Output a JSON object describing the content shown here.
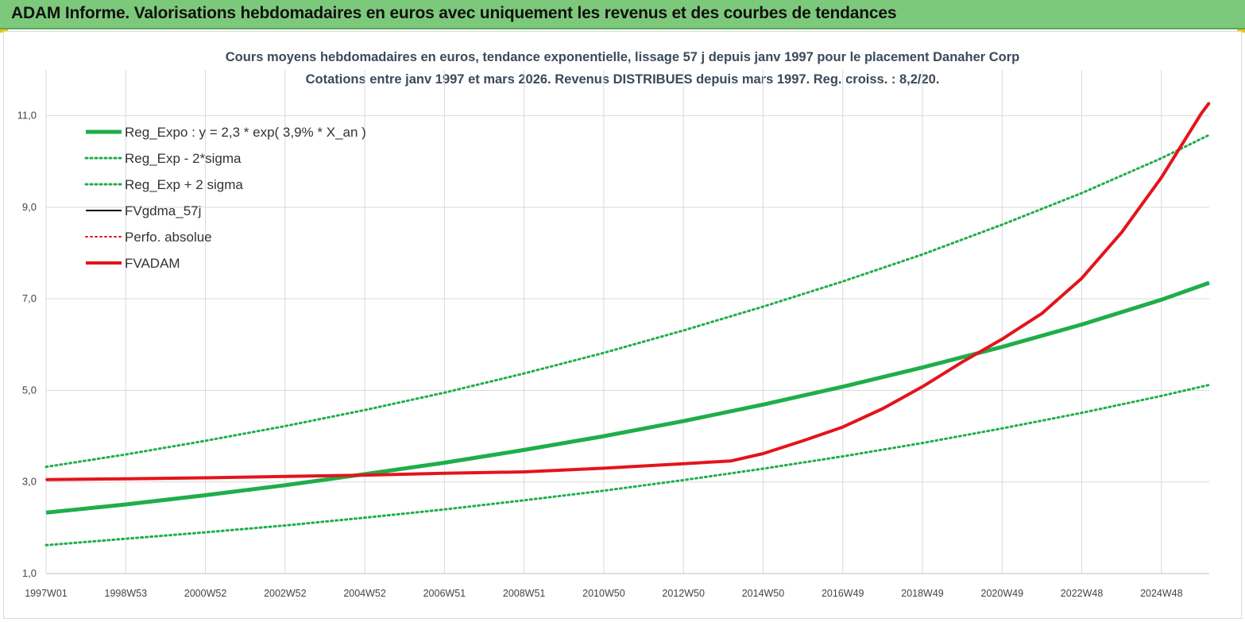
{
  "header": {
    "banner_title": "ADAM Informe. Valorisations hebdomadaires en euros avec uniquement les revenus et des courbes de tendances"
  },
  "colors": {
    "banner_bg": "#7dc97b",
    "reg_expo": "#1fae4a",
    "fvadam": "#e3141b",
    "fvgdma": "#000000",
    "grid": "#d9d9d9"
  },
  "chart_data": {
    "type": "line",
    "title": "Cours moyens hebdomadaires en euros, tendance exponentielle, lissage 57 j depuis janv 1997 pour le placement Danaher Corp",
    "subtitle": "Cotations entre janv 1997 et mars 2026. Revenus DISTRIBUES depuis mars 1997. Reg. croiss. : 8,2/20.",
    "xlabel": "",
    "ylabel": "",
    "x_range": [
      1997.0,
      2026.2
    ],
    "ylim": [
      1.0,
      12.0
    ],
    "y_ticks": [
      1.0,
      3.0,
      5.0,
      7.0,
      9.0,
      11.0
    ],
    "y_tick_labels": [
      "1,0",
      "3,0",
      "5,0",
      "7,0",
      "9,0",
      "11,0"
    ],
    "x_ticks": [
      {
        "label": "1997W01",
        "x": 1997.0
      },
      {
        "label": "1998W53",
        "x": 1999.0
      },
      {
        "label": "2000W52",
        "x": 2001.0
      },
      {
        "label": "2002W52",
        "x": 2003.0
      },
      {
        "label": "2004W52",
        "x": 2005.0
      },
      {
        "label": "2006W51",
        "x": 2007.0
      },
      {
        "label": "2008W51",
        "x": 2009.0
      },
      {
        "label": "2010W50",
        "x": 2011.0
      },
      {
        "label": "2012W50",
        "x": 2013.0
      },
      {
        "label": "2014W50",
        "x": 2015.0
      },
      {
        "label": "2016W49",
        "x": 2017.0
      },
      {
        "label": "2018W49",
        "x": 2019.0
      },
      {
        "label": "2020W49",
        "x": 2021.0
      },
      {
        "label": "2022W48",
        "x": 2023.0
      },
      {
        "label": "2024W48",
        "x": 2025.0
      }
    ],
    "grid": true,
    "legend_position": "top-left",
    "series": [
      {
        "name": "Reg_Expo : y = 2,3 * exp( 3,9% *  X_an )",
        "style": "solid-thick",
        "color": "#1fae4a",
        "points": [
          [
            1997.0,
            2.33
          ],
          [
            1999.0,
            2.51
          ],
          [
            2001.0,
            2.71
          ],
          [
            2003.0,
            2.93
          ],
          [
            2005.0,
            3.17
          ],
          [
            2007.0,
            3.42
          ],
          [
            2009.0,
            3.7
          ],
          [
            2011.0,
            4.0
          ],
          [
            2013.0,
            4.33
          ],
          [
            2015.0,
            4.69
          ],
          [
            2017.0,
            5.08
          ],
          [
            2019.0,
            5.5
          ],
          [
            2021.0,
            5.95
          ],
          [
            2023.0,
            6.44
          ],
          [
            2025.0,
            6.98
          ],
          [
            2026.2,
            7.35
          ]
        ]
      },
      {
        "name": "Reg_Exp - 2*sigma",
        "style": "dotted",
        "color": "#1fae4a",
        "points": [
          [
            1997.0,
            1.62
          ],
          [
            1999.0,
            1.76
          ],
          [
            2001.0,
            1.9
          ],
          [
            2003.0,
            2.05
          ],
          [
            2005.0,
            2.22
          ],
          [
            2007.0,
            2.4
          ],
          [
            2009.0,
            2.6
          ],
          [
            2011.0,
            2.81
          ],
          [
            2013.0,
            3.04
          ],
          [
            2015.0,
            3.29
          ],
          [
            2017.0,
            3.56
          ],
          [
            2019.0,
            3.85
          ],
          [
            2021.0,
            4.17
          ],
          [
            2023.0,
            4.51
          ],
          [
            2025.0,
            4.88
          ],
          [
            2026.2,
            5.12
          ]
        ]
      },
      {
        "name": "Reg_Exp + 2 sigma",
        "style": "dotted",
        "color": "#1fae4a",
        "points": [
          [
            1997.0,
            3.33
          ],
          [
            1999.0,
            3.6
          ],
          [
            2001.0,
            3.9
          ],
          [
            2003.0,
            4.22
          ],
          [
            2005.0,
            4.57
          ],
          [
            2007.0,
            4.95
          ],
          [
            2009.0,
            5.37
          ],
          [
            2011.0,
            5.82
          ],
          [
            2013.0,
            6.31
          ],
          [
            2015.0,
            6.83
          ],
          [
            2017.0,
            7.38
          ],
          [
            2019.0,
            7.97
          ],
          [
            2021.0,
            8.62
          ],
          [
            2023.0,
            9.31
          ],
          [
            2025.0,
            10.07
          ],
          [
            2026.2,
            10.58
          ]
        ]
      },
      {
        "name": "FVgdma_57j",
        "style": "solid",
        "color": "#000000",
        "points": [
          [
            1997.0,
            3.05
          ],
          [
            1999.0,
            3.07
          ],
          [
            2001.0,
            3.09
          ],
          [
            2003.0,
            3.12
          ],
          [
            2005.0,
            3.15
          ],
          [
            2007.0,
            3.19
          ],
          [
            2009.0,
            3.22
          ],
          [
            2011.0,
            3.3
          ],
          [
            2013.0,
            3.4
          ],
          [
            2014.2,
            3.46
          ],
          [
            2015.0,
            3.62
          ],
          [
            2016.0,
            3.9
          ],
          [
            2017.0,
            4.2
          ],
          [
            2018.0,
            4.6
          ],
          [
            2019.0,
            5.08
          ],
          [
            2020.0,
            5.62
          ],
          [
            2021.0,
            6.12
          ],
          [
            2022.0,
            6.68
          ],
          [
            2023.0,
            7.45
          ],
          [
            2024.0,
            8.45
          ],
          [
            2025.0,
            9.65
          ],
          [
            2026.0,
            11.05
          ],
          [
            2026.2,
            11.28
          ]
        ]
      },
      {
        "name": "Perfo. absolue",
        "style": "dotted",
        "color": "#e3141b",
        "points": [
          [
            1997.0,
            3.05
          ],
          [
            1999.0,
            3.07
          ],
          [
            2001.0,
            3.09
          ],
          [
            2003.0,
            3.12
          ],
          [
            2005.0,
            3.15
          ],
          [
            2007.0,
            3.19
          ],
          [
            2009.0,
            3.22
          ],
          [
            2011.0,
            3.3
          ],
          [
            2013.0,
            3.4
          ],
          [
            2014.2,
            3.46
          ],
          [
            2015.0,
            3.62
          ],
          [
            2016.0,
            3.9
          ],
          [
            2017.0,
            4.2
          ],
          [
            2018.0,
            4.6
          ],
          [
            2019.0,
            5.08
          ],
          [
            2020.0,
            5.62
          ],
          [
            2021.0,
            6.12
          ],
          [
            2022.0,
            6.68
          ],
          [
            2023.0,
            7.45
          ],
          [
            2024.0,
            8.45
          ],
          [
            2025.0,
            9.65
          ],
          [
            2026.0,
            11.05
          ],
          [
            2026.2,
            11.28
          ]
        ]
      },
      {
        "name": "FVADAM",
        "style": "solid-thick",
        "color": "#e3141b",
        "points": [
          [
            1997.0,
            3.05
          ],
          [
            1999.0,
            3.07
          ],
          [
            2001.0,
            3.09
          ],
          [
            2003.0,
            3.12
          ],
          [
            2005.0,
            3.15
          ],
          [
            2007.0,
            3.19
          ],
          [
            2009.0,
            3.22
          ],
          [
            2011.0,
            3.3
          ],
          [
            2013.0,
            3.4
          ],
          [
            2014.2,
            3.46
          ],
          [
            2015.0,
            3.62
          ],
          [
            2016.0,
            3.9
          ],
          [
            2017.0,
            4.2
          ],
          [
            2018.0,
            4.6
          ],
          [
            2019.0,
            5.08
          ],
          [
            2020.0,
            5.62
          ],
          [
            2021.0,
            6.12
          ],
          [
            2022.0,
            6.68
          ],
          [
            2023.0,
            7.45
          ],
          [
            2024.0,
            8.45
          ],
          [
            2025.0,
            9.65
          ],
          [
            2026.0,
            11.05
          ],
          [
            2026.2,
            11.28
          ]
        ]
      }
    ]
  }
}
